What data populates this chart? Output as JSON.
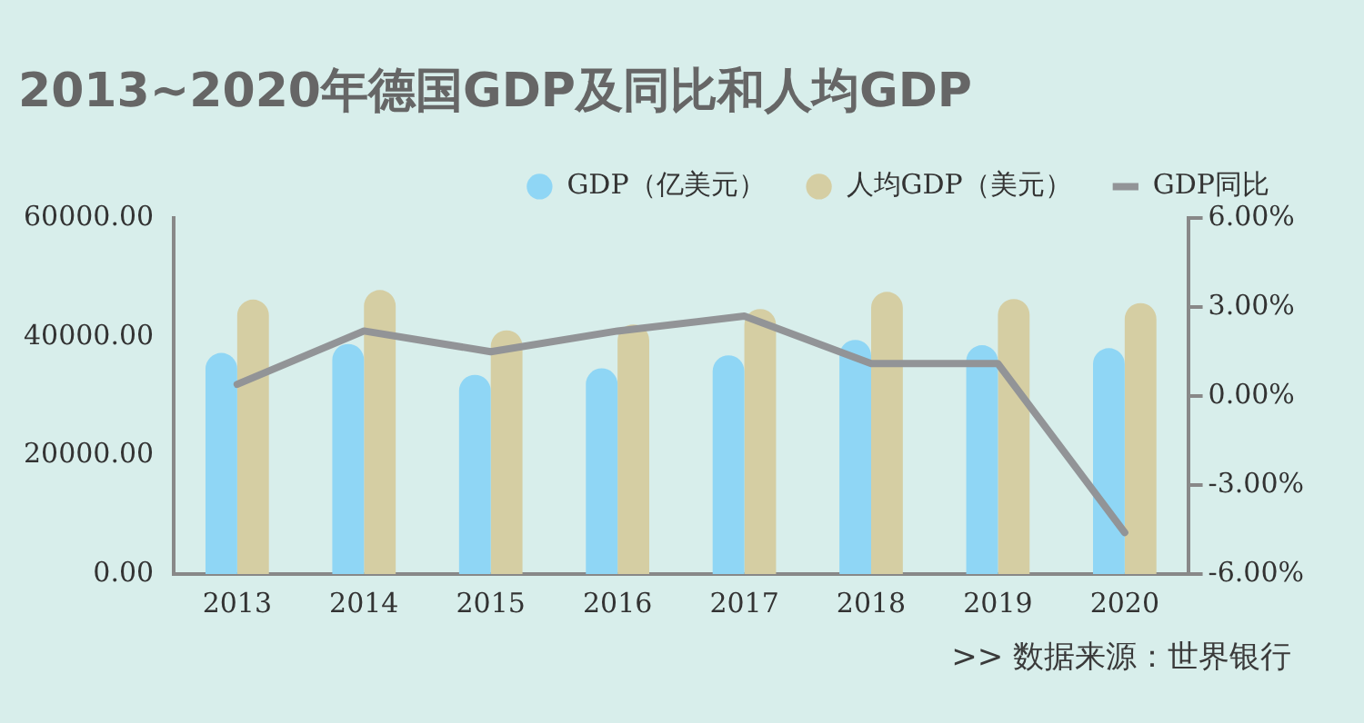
{
  "chart_data": {
    "type": "bar",
    "title": "2013~2020年德国GDP及同比和人均GDP",
    "categories": [
      "2013",
      "2014",
      "2015",
      "2016",
      "2017",
      "2018",
      "2019",
      "2020"
    ],
    "series": [
      {
        "name": "GDP（亿美元）",
        "color": "#8fd6f5",
        "values": [
          37300,
          38800,
          33600,
          34700,
          36900,
          39500,
          38600,
          38100
        ]
      },
      {
        "name": "人均GDP（美元）",
        "color": "#d5cea3",
        "values": [
          46300,
          47900,
          41100,
          42100,
          44700,
          47600,
          46400,
          45700
        ]
      },
      {
        "name": "GDP同比",
        "type": "line",
        "axis": "y2",
        "color": "#929497",
        "values": [
          0.4,
          2.2,
          1.5,
          2.2,
          2.7,
          1.1,
          1.1,
          -4.6
        ]
      }
    ],
    "ylim": [
      0,
      60000
    ],
    "yticks": [
      {
        "value": 0,
        "label": "0.00"
      },
      {
        "value": 20000,
        "label": "20000.00"
      },
      {
        "value": 40000,
        "label": "40000.00"
      },
      {
        "value": 60000,
        "label": "60000.00"
      }
    ],
    "y2lim": [
      -6,
      6
    ],
    "y2ticks": [
      {
        "value": -6,
        "label": "-6.00%"
      },
      {
        "value": -3,
        "label": "-3.00%"
      },
      {
        "value": 0,
        "label": "0.00%"
      },
      {
        "value": 3,
        "label": "3.00%"
      },
      {
        "value": 6,
        "label": "6.00%"
      }
    ],
    "grid": false,
    "legend": "top right",
    "marker": "none",
    "annotations": [
      ">>  数据来源：世界银行"
    ]
  }
}
